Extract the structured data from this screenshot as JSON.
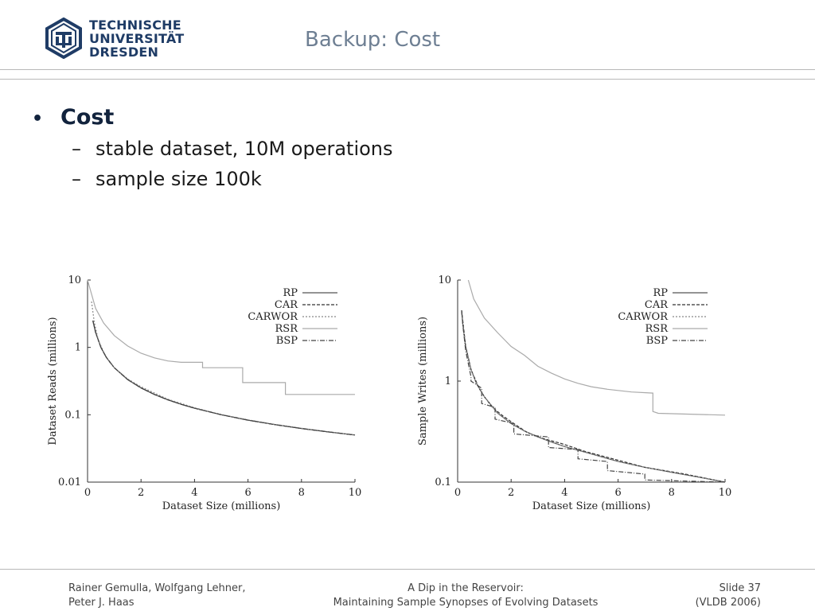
{
  "header": {
    "logo_lines": [
      "TECHNISCHE",
      "UNIVERSITÄT",
      "DRESDEN"
    ],
    "title": "Backup: Cost"
  },
  "content": {
    "bullet": "Cost",
    "subitems": [
      "stable dataset, 10M operations",
      "sample size 100k"
    ]
  },
  "chart_data": [
    {
      "type": "line",
      "xlabel": "Dataset Size (millions)",
      "ylabel": "Dataset Reads (millions)",
      "yscale": "log",
      "xlim": [
        0,
        10
      ],
      "ylim": [
        0.01,
        10
      ],
      "xticks": [
        "0",
        "2",
        "4",
        "6",
        "8",
        "10"
      ],
      "yticks": [
        "0.01",
        "0.1",
        "1",
        "10"
      ],
      "legend_position": "top-right",
      "series": [
        {
          "name": "RP",
          "x": [
            0.2,
            0.3,
            0.5,
            0.7,
            1,
            1.5,
            2,
            2.5,
            3,
            3.5,
            4,
            5,
            6,
            7,
            8,
            9,
            10
          ],
          "y": [
            2.5,
            1.67,
            1.0,
            0.714,
            0.5,
            0.333,
            0.25,
            0.2,
            0.167,
            0.143,
            0.125,
            0.1,
            0.0833,
            0.0714,
            0.0625,
            0.0556,
            0.05
          ]
        },
        {
          "name": "CAR",
          "x": [
            0.2,
            0.3,
            0.5,
            0.7,
            1,
            1.5,
            2,
            2.5,
            3,
            3.5,
            4,
            5,
            6,
            7,
            8,
            9,
            10
          ],
          "y": [
            2.5,
            1.67,
            1.0,
            0.714,
            0.5,
            0.333,
            0.25,
            0.2,
            0.167,
            0.143,
            0.125,
            0.1,
            0.0833,
            0.0714,
            0.0625,
            0.0556,
            0.05
          ]
        },
        {
          "name": "CARWOR",
          "x": [
            0.15,
            0.25,
            0.4,
            0.6,
            0.8,
            1,
            1.5,
            2,
            3,
            4,
            5,
            6,
            7,
            8,
            9,
            10
          ],
          "y": [
            4.8,
            2.4,
            1.3,
            0.85,
            0.62,
            0.5,
            0.34,
            0.26,
            0.17,
            0.127,
            0.101,
            0.084,
            0.072,
            0.063,
            0.056,
            0.05
          ]
        },
        {
          "name": "RSR",
          "x": [
            0,
            0.3,
            0.6,
            1,
            1.5,
            2,
            2.5,
            3,
            3.5,
            3.6,
            4.3,
            4.3,
            5.8,
            5.8,
            7.4,
            7.4,
            10
          ],
          "y": [
            10,
            3.8,
            2.3,
            1.5,
            1.05,
            0.82,
            0.7,
            0.63,
            0.6,
            0.6,
            0.6,
            0.5,
            0.5,
            0.3,
            0.3,
            0.2,
            0.2
          ]
        },
        {
          "name": "BSP",
          "x": [
            0.2,
            0.3,
            0.5,
            0.7,
            1,
            1.5,
            2,
            2.5,
            3,
            3.5,
            4,
            5,
            6,
            7,
            8,
            9,
            10
          ],
          "y": [
            2.5,
            1.67,
            1.0,
            0.714,
            0.5,
            0.333,
            0.25,
            0.2,
            0.167,
            0.143,
            0.125,
            0.1,
            0.0833,
            0.0714,
            0.0625,
            0.0556,
            0.05
          ]
        }
      ]
    },
    {
      "type": "line",
      "xlabel": "Dataset Size (millions)",
      "ylabel": "Sample Writes (millions)",
      "yscale": "log",
      "xlim": [
        0,
        10
      ],
      "ylim": [
        0.1,
        10
      ],
      "xticks": [
        "0",
        "2",
        "4",
        "6",
        "8",
        "10"
      ],
      "yticks": [
        "0.1",
        "1",
        "10"
      ],
      "legend_position": "top-right",
      "series": [
        {
          "name": "RP",
          "x": [
            0.15,
            0.2,
            0.3,
            0.5,
            0.7,
            1,
            1.5,
            2,
            2.5,
            3,
            3.5,
            4,
            5,
            6,
            7,
            8,
            9,
            10
          ],
          "y": [
            5.0,
            3.5,
            2.2,
            1.3,
            0.95,
            0.7,
            0.48,
            0.38,
            0.32,
            0.28,
            0.25,
            0.225,
            0.19,
            0.16,
            0.14,
            0.125,
            0.112,
            0.1
          ]
        },
        {
          "name": "CAR",
          "x": [
            0.15,
            0.3,
            0.5,
            0.8,
            1,
            1.3,
            1.7,
            2.1,
            2.6,
            3.2,
            3.9,
            4.8,
            5.8,
            7,
            8.5,
            10
          ],
          "y": [
            5.0,
            2.2,
            1.3,
            0.85,
            0.7,
            0.55,
            0.45,
            0.38,
            0.31,
            0.27,
            0.24,
            0.2,
            0.17,
            0.14,
            0.12,
            0.1
          ]
        },
        {
          "name": "CARWOR",
          "x": [
            0.15,
            0.2,
            0.3,
            0.5,
            0.7,
            1,
            1.5,
            2,
            2.5,
            3,
            3.5,
            4,
            5,
            6,
            7,
            8,
            9,
            10
          ],
          "y": [
            5.0,
            3.5,
            2.2,
            1.3,
            0.95,
            0.7,
            0.48,
            0.38,
            0.32,
            0.28,
            0.25,
            0.225,
            0.19,
            0.16,
            0.14,
            0.125,
            0.112,
            0.1
          ]
        },
        {
          "name": "RSR",
          "x": [
            0.4,
            0.6,
            1,
            1.5,
            2,
            2.5,
            3,
            3.5,
            4,
            4.5,
            5,
            5.6,
            6.5,
            7.3,
            7.3,
            7.5,
            10
          ],
          "y": [
            10,
            6.5,
            4.2,
            3.0,
            2.2,
            1.8,
            1.4,
            1.2,
            1.05,
            0.95,
            0.88,
            0.83,
            0.78,
            0.76,
            0.5,
            0.48,
            0.46
          ]
        },
        {
          "name": "BSP",
          "x": [
            0.15,
            0.2,
            0.3,
            0.5,
            0.5,
            0.9,
            0.9,
            1.4,
            1.4,
            2.1,
            2.1,
            3.4,
            3.4,
            4.5,
            4.5,
            5.6,
            5.6,
            7.0,
            7.0,
            10
          ],
          "y": [
            5.0,
            3.5,
            2.0,
            1.1,
            1.0,
            0.85,
            0.6,
            0.55,
            0.42,
            0.38,
            0.3,
            0.28,
            0.22,
            0.21,
            0.17,
            0.16,
            0.13,
            0.12,
            0.105,
            0.1
          ]
        }
      ]
    }
  ],
  "styles": {
    "RP": {
      "color": "#555555",
      "dash": ""
    },
    "CAR": {
      "color": "#333333",
      "dash": "4,2"
    },
    "CARWOR": {
      "color": "#888888",
      "dash": "2,2"
    },
    "RSR": {
      "color": "#aaaaaa",
      "dash": ""
    },
    "BSP": {
      "color": "#444444",
      "dash": "6,2,1,2"
    }
  },
  "footer": {
    "left": [
      "Rainer Gemulla, Wolfgang Lehner,",
      "Peter J. Haas"
    ],
    "center": [
      "A Dip in the Reservoir:",
      "Maintaining Sample Synopses of Evolving Datasets"
    ],
    "right": [
      "Slide 37",
      "(VLDB 2006)"
    ]
  }
}
